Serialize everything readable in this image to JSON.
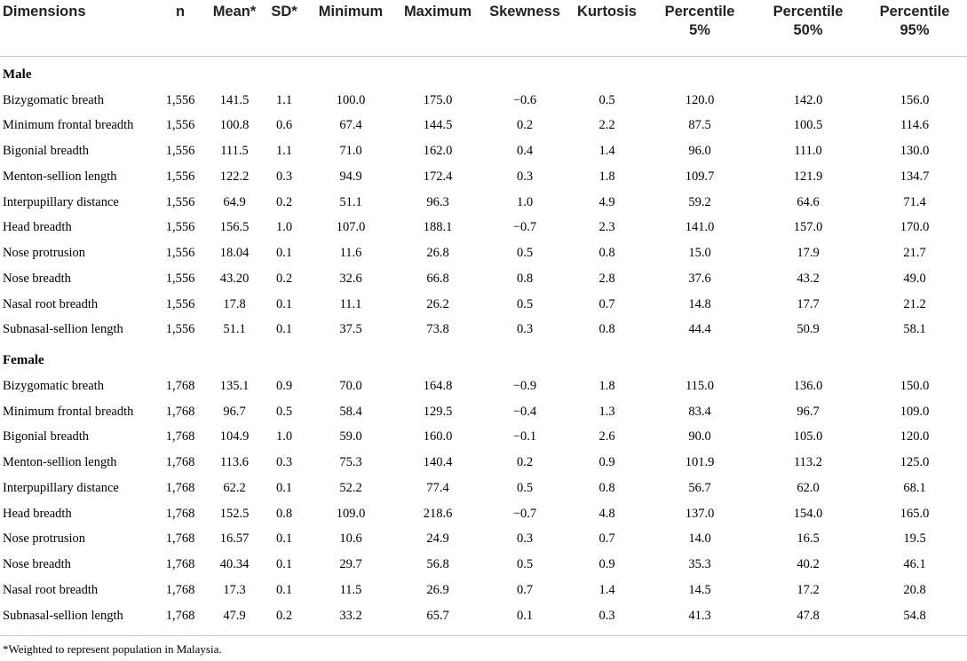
{
  "headers": [
    [
      "Dimensions"
    ],
    [
      "n"
    ],
    [
      "Mean*"
    ],
    [
      "SD*"
    ],
    [
      "Minimum"
    ],
    [
      "Maximum"
    ],
    [
      "Skewness"
    ],
    [
      "Kurtosis"
    ],
    [
      "Percentile",
      "5%"
    ],
    [
      "Percentile",
      "50%"
    ],
    [
      "Percentile",
      "95%"
    ]
  ],
  "sections": [
    {
      "label": "Male",
      "rows": [
        [
          "Bizygomatic breath",
          "1,556",
          "141.5",
          "1.1",
          "100.0",
          "175.0",
          "−0.6",
          "0.5",
          "120.0",
          "142.0",
          "156.0"
        ],
        [
          "Minimum frontal breadth",
          "1,556",
          "100.8",
          "0.6",
          "67.4",
          "144.5",
          "0.2",
          "2.2",
          "87.5",
          "100.5",
          "114.6"
        ],
        [
          "Bigonial breadth",
          "1,556",
          "111.5",
          "1.1",
          "71.0",
          "162.0",
          "0.4",
          "1.4",
          "96.0",
          "111.0",
          "130.0"
        ],
        [
          "Menton-sellion length",
          "1,556",
          "122.2",
          "0.3",
          "94.9",
          "172.4",
          "0.3",
          "1.8",
          "109.7",
          "121.9",
          "134.7"
        ],
        [
          "Interpupillary distance",
          "1,556",
          "64.9",
          "0.2",
          "51.1",
          "96.3",
          "1.0",
          "4.9",
          "59.2",
          "64.6",
          "71.4"
        ],
        [
          "Head breadth",
          "1,556",
          "156.5",
          "1.0",
          "107.0",
          "188.1",
          "−0.7",
          "2.3",
          "141.0",
          "157.0",
          "170.0"
        ],
        [
          "Nose protrusion",
          "1,556",
          "18.04",
          "0.1",
          "11.6",
          "26.8",
          "0.5",
          "0.8",
          "15.0",
          "17.9",
          "21.7"
        ],
        [
          "Nose breadth",
          "1,556",
          "43.20",
          "0.2",
          "32.6",
          "66.8",
          "0.8",
          "2.8",
          "37.6",
          "43.2",
          "49.0"
        ],
        [
          "Nasal root breadth",
          "1,556",
          "17.8",
          "0.1",
          "11.1",
          "26.2",
          "0.5",
          "0.7",
          "14.8",
          "17.7",
          "21.2"
        ],
        [
          "Subnasal-sellion length",
          "1,556",
          "51.1",
          "0.1",
          "37.5",
          "73.8",
          "0.3",
          "0.8",
          "44.4",
          "50.9",
          "58.1"
        ]
      ]
    },
    {
      "label": "Female",
      "rows": [
        [
          "Bizygomatic breath",
          "1,768",
          "135.1",
          "0.9",
          "70.0",
          "164.8",
          "−0.9",
          "1.8",
          "115.0",
          "136.0",
          "150.0"
        ],
        [
          "Minimum frontal breadth",
          "1,768",
          "96.7",
          "0.5",
          "58.4",
          "129.5",
          "−0.4",
          "1.3",
          "83.4",
          "96.7",
          "109.0"
        ],
        [
          "Bigonial breadth",
          "1,768",
          "104.9",
          "1.0",
          "59.0",
          "160.0",
          "−0.1",
          "2.6",
          "90.0",
          "105.0",
          "120.0"
        ],
        [
          "Menton-sellion length",
          "1,768",
          "113.6",
          "0.3",
          "75.3",
          "140.4",
          "0.2",
          "0.9",
          "101.9",
          "113.2",
          "125.0"
        ],
        [
          "Interpupillary distance",
          "1,768",
          "62.2",
          "0.1",
          "52.2",
          "77.4",
          "0.5",
          "0.8",
          "56.7",
          "62.0",
          "68.1"
        ],
        [
          "Head breadth",
          "1,768",
          "152.5",
          "0.8",
          "109.0",
          "218.6",
          "−0.7",
          "4.8",
          "137.0",
          "154.0",
          "165.0"
        ],
        [
          "Nose protrusion",
          "1,768",
          "16.57",
          "0.1",
          "10.6",
          "24.9",
          "0.3",
          "0.7",
          "14.0",
          "16.5",
          "19.5"
        ],
        [
          "Nose breadth",
          "1,768",
          "40.34",
          "0.1",
          "29.7",
          "56.8",
          "0.5",
          "0.9",
          "35.3",
          "40.2",
          "46.1"
        ],
        [
          "Nasal root breadth",
          "1,768",
          "17.3",
          "0.1",
          "11.5",
          "26.9",
          "0.7",
          "1.4",
          "14.5",
          "17.2",
          "20.8"
        ],
        [
          "Subnasal-sellion length",
          "1,768",
          "47.9",
          "0.2",
          "33.2",
          "65.7",
          "0.1",
          "0.3",
          "41.3",
          "47.8",
          "54.8"
        ]
      ]
    }
  ],
  "footnote": "*Weighted to represent population in Malaysia."
}
